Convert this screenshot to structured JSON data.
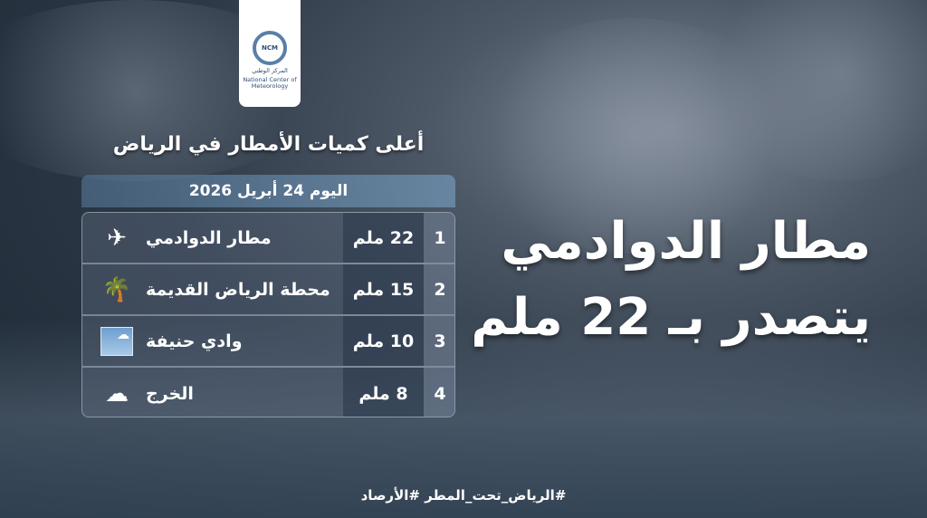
{
  "logo": {
    "abbr": "NCM",
    "name_ar": "المركز الوطني",
    "name_en": "National Center of Meteorology"
  },
  "title": "أعلى كميات الأمطار في الرياض",
  "date": "اليوم 24 أبريل 2026",
  "rows": [
    {
      "rank": "1",
      "amount": "22 ملم",
      "place": "مطار الدوادمي",
      "icon": "airplane-icon",
      "glyph": "✈"
    },
    {
      "rank": "2",
      "amount": "15 ملم",
      "place": "محطة الرياض القديمة",
      "icon": "palm-tree-icon",
      "glyph": "🌴"
    },
    {
      "rank": "3",
      "amount": "10 ملم",
      "place": "وادي حنيفة",
      "icon": "sky-cloud-icon",
      "glyph": "☁"
    },
    {
      "rank": "4",
      "amount": "8 ملم",
      "place": "الخرج",
      "icon": "clouds-icon",
      "glyph": "☁"
    }
  ],
  "headline": {
    "line1": "مطار الدوادمي",
    "line2": "يتصدر بـ 22 ملم"
  },
  "hashtags": "#الرياض_تحت_المطر #الأرصاد"
}
